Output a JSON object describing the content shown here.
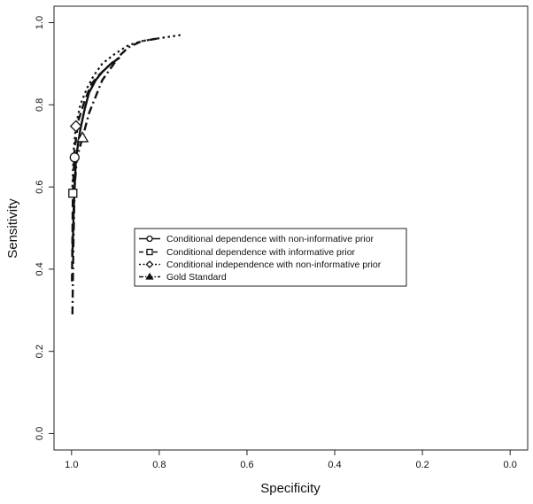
{
  "chart_data": {
    "type": "line",
    "title": "",
    "xlabel": "Specificity",
    "ylabel": "Sensitivity",
    "xlim": [
      1.04,
      -0.04
    ],
    "ylim": [
      -0.04,
      1.04
    ],
    "x_reversed": true,
    "xticks": [
      1.0,
      0.8,
      0.6,
      0.4,
      0.2,
      0.0
    ],
    "xtick_labels": [
      "1.0",
      "0.8",
      "0.6",
      "0.4",
      "0.2",
      "0.0"
    ],
    "yticks": [
      0.0,
      0.2,
      0.4,
      0.6,
      0.8,
      1.0
    ],
    "ytick_labels": [
      "0.0",
      "0.2",
      "0.4",
      "0.6",
      "0.8",
      "1.0"
    ],
    "grid": false,
    "legend_position": "center-left",
    "series": [
      {
        "name": "Conditional dependence with non-informative prior",
        "line_style": "solid",
        "marker": "circle",
        "point": {
          "x": 0.993,
          "y": 0.672
        },
        "x": [
          0.998,
          0.995,
          0.99,
          0.98,
          0.97,
          0.96,
          0.945,
          0.93,
          0.91,
          0.89
        ],
        "y": [
          0.43,
          0.55,
          0.67,
          0.74,
          0.79,
          0.83,
          0.86,
          0.88,
          0.9,
          0.915
        ]
      },
      {
        "name": "Conditional dependence with informative prior",
        "line_style": "dashed",
        "marker": "square",
        "point": {
          "x": 0.997,
          "y": 0.585
        },
        "x": [
          0.999,
          0.997,
          0.993,
          0.985,
          0.97,
          0.955,
          0.94,
          0.92,
          0.9
        ],
        "y": [
          0.37,
          0.585,
          0.69,
          0.76,
          0.81,
          0.85,
          0.87,
          0.89,
          0.91
        ]
      },
      {
        "name": "Conditional independence with non-informative prior",
        "line_style": "dotted",
        "marker": "diamond",
        "point": {
          "x": 0.99,
          "y": 0.748
        },
        "x": [
          0.998,
          0.995,
          0.99,
          0.98,
          0.965,
          0.95,
          0.93,
          0.9,
          0.87,
          0.84,
          0.8,
          0.75
        ],
        "y": [
          0.6,
          0.69,
          0.75,
          0.8,
          0.84,
          0.87,
          0.9,
          0.925,
          0.945,
          0.955,
          0.962,
          0.97
        ]
      },
      {
        "name": "Gold Standard",
        "line_style": "dashdot",
        "marker": "triangle",
        "point": {
          "x": 0.975,
          "y": 0.72
        },
        "x": [
          0.998,
          0.996,
          0.993,
          0.988,
          0.975,
          0.96,
          0.945,
          0.93,
          0.91,
          0.89,
          0.87,
          0.84,
          0.8
        ],
        "y": [
          0.29,
          0.45,
          0.6,
          0.67,
          0.72,
          0.78,
          0.82,
          0.86,
          0.89,
          0.92,
          0.94,
          0.955,
          0.962
        ]
      }
    ]
  }
}
